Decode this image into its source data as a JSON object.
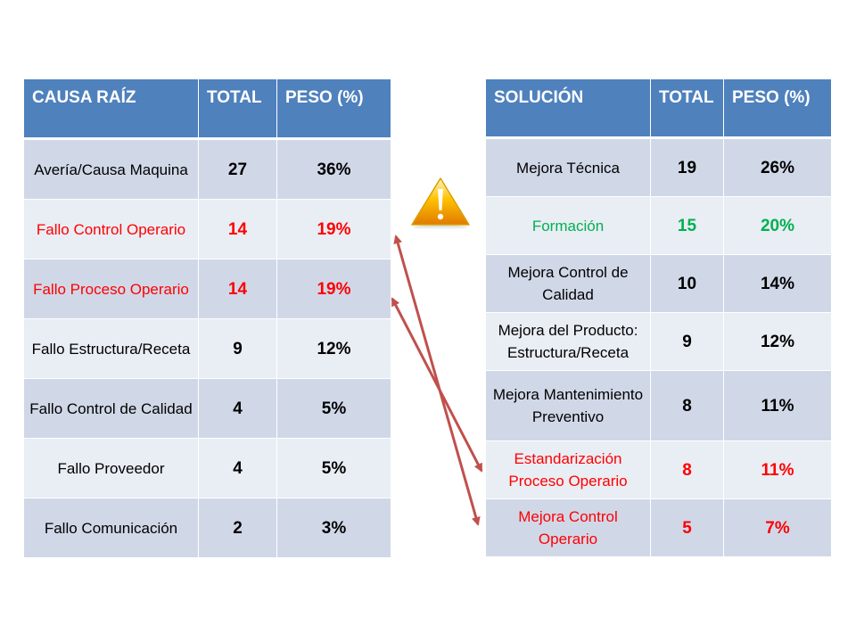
{
  "left_table": {
    "headers": [
      "CAUSA RAÍZ",
      "TOTAL",
      "PESO (%)"
    ],
    "rows": [
      {
        "label": "Avería/Causa  Maquina",
        "total": "27",
        "peso": "36%"
      },
      {
        "label": "Fallo Control Operario",
        "total": "14",
        "peso": "19%"
      },
      {
        "label": "Fallo Proceso Operario",
        "total": "14",
        "peso": "19%"
      },
      {
        "label": "Fallo Estructura/Receta",
        "total": "9",
        "peso": "12%"
      },
      {
        "label": "Fallo Control de Calidad",
        "total": "4",
        "peso": "5%"
      },
      {
        "label": "Fallo Proveedor",
        "total": "4",
        "peso": "5%"
      },
      {
        "label": "Fallo Comunicación",
        "total": "2",
        "peso": "3%"
      }
    ]
  },
  "right_table": {
    "headers": [
      "SOLUCIÓN",
      "TOTAL",
      "PESO (%)"
    ],
    "rows": [
      {
        "label": "Mejora Técnica",
        "total": "19",
        "peso": "26%"
      },
      {
        "label": "Formación",
        "total": "15",
        "peso": "20%"
      },
      {
        "label": "Mejora Control de Calidad",
        "total": "10",
        "peso": "14%"
      },
      {
        "label": "Mejora del Producto: Estructura/Receta",
        "total": "9",
        "peso": "12%"
      },
      {
        "label": "Mejora Mantenimiento Preventivo",
        "total": "8",
        "peso": "11%"
      },
      {
        "label": "Estandarización Proceso Operario",
        "total": "8",
        "peso": "11%"
      },
      {
        "label": "Mejora Control Operario",
        "total": "5",
        "peso": "7%"
      }
    ]
  },
  "colors": {
    "header": "#4f81bd",
    "row_dark": "#d0d8e8",
    "row_light": "#e9edf4",
    "highlight_red": "#ff0000",
    "highlight_green": "#00b050",
    "arrow": "#c0504d"
  },
  "icons": {
    "warning": "warning-icon",
    "arrows": "double-headed-arrow-icon"
  }
}
